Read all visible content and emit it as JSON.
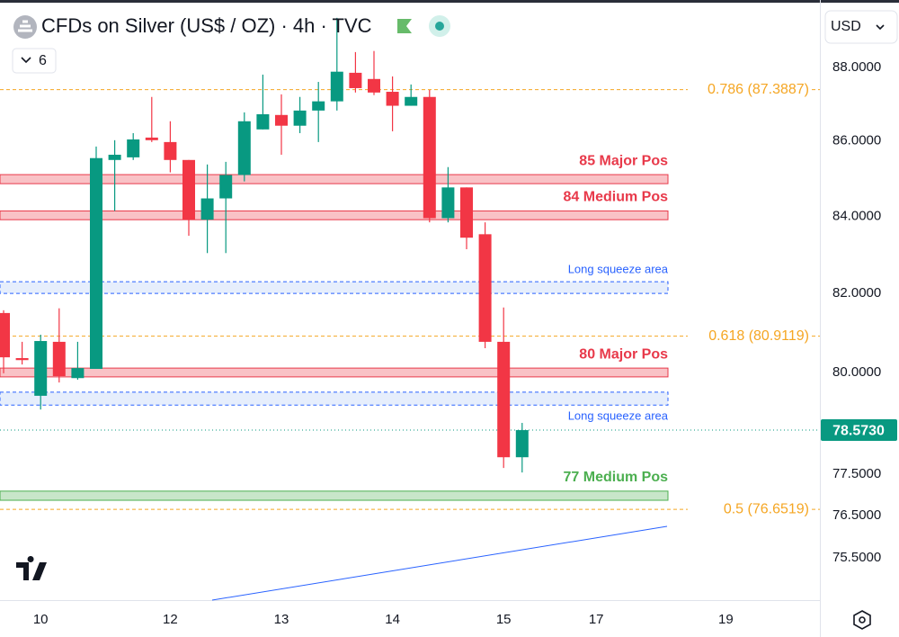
{
  "chart_data": {
    "type": "candlestick",
    "title": "CFDs on Silver (US$ / OZ) · 4h · TVC",
    "indicators": 6,
    "currency": "USD",
    "log_scale": true,
    "grid": false,
    "up_color": "#089981",
    "down_color": "#f23645",
    "categories": [
      null,
      null,
      "10",
      null,
      null,
      null,
      null,
      null,
      null,
      "12",
      null,
      null,
      null,
      null,
      null,
      "13",
      null,
      null,
      null,
      null,
      null,
      "14",
      null,
      null,
      null,
      null,
      null,
      "15",
      null,
      null,
      null,
      null,
      "17",
      null,
      null,
      null,
      null,
      null,
      null,
      "19",
      null,
      null,
      null,
      null
    ],
    "open": [
      81.5,
      80.36,
      79.42,
      80.77,
      79.86,
      80.09,
      85.49,
      85.56,
      86.09,
      85.97,
      85.49,
      83.91,
      84.47,
      85.09,
      86.31,
      86.7,
      86.41,
      86.82,
      87.07,
      87.85,
      87.68,
      87.33,
      86.95,
      87.19,
      83.95,
      84.76,
      83.53,
      80.77,
      77.91,
      null,
      null,
      null,
      null,
      null,
      null,
      null,
      null,
      null,
      null,
      null,
      null,
      null,
      null,
      null
    ],
    "high": [
      81.57,
      80.77,
      80.95,
      81.62,
      80.77,
      85.85,
      86.02,
      86.21,
      87.19,
      86.53,
      85.49,
      85.37,
      85.44,
      86.77,
      87.8,
      87.26,
      87.19,
      87.6,
      89.37,
      88.42,
      88.45,
      87.75,
      87.53,
      87.38,
      85.3,
      84.76,
      83.84,
      81.64,
      78.75,
      null,
      null,
      null,
      null,
      null,
      null,
      null,
      null,
      null,
      null,
      null,
      null,
      null,
      null,
      null
    ],
    "low": [
      79.98,
      80.2,
      79.08,
      79.75,
      79.82,
      80.09,
      84.14,
      85.49,
      85.97,
      85.16,
      83.49,
      83.04,
      83.04,
      84.92,
      86.31,
      85.63,
      86.21,
      85.97,
      86.82,
      87.31,
      87.24,
      86.26,
      86.95,
      83.84,
      83.84,
      83.14,
      80.61,
      77.65,
      77.54,
      null,
      null,
      null,
      null,
      null,
      null,
      null,
      null,
      null,
      null,
      null,
      null,
      null,
      null,
      null
    ],
    "close": [
      80.38,
      80.31,
      80.79,
      79.91,
      80.11,
      85.54,
      85.63,
      86.04,
      86.02,
      85.49,
      83.91,
      84.47,
      85.09,
      86.53,
      86.72,
      86.41,
      86.82,
      87.07,
      87.88,
      87.43,
      87.31,
      86.95,
      87.19,
      83.95,
      84.76,
      83.44,
      80.77,
      77.91,
      78.573,
      null,
      null,
      null,
      null,
      null,
      null,
      null,
      null,
      null,
      null,
      null,
      null,
      null,
      null,
      null
    ],
    "ylim": [
      74.51,
      89.87
    ],
    "yticks": [
      {
        "value": 88,
        "label": "88.0000"
      },
      {
        "value": 86,
        "label": "86.0000"
      },
      {
        "value": 84,
        "label": "84.0000"
      },
      {
        "value": 82,
        "label": "82.0000"
      },
      {
        "value": 80,
        "label": "80.0000"
      },
      {
        "value": 77.5,
        "label": "77.5000"
      },
      {
        "value": 76.5,
        "label": "76.5000"
      },
      {
        "value": 75.5,
        "label": "75.5000"
      }
    ],
    "last_price": {
      "value": 78.573,
      "label": "78.5730"
    },
    "levels": [
      {
        "value": 87.3887,
        "label": "0.786 (87.3887)",
        "color": "#f5a623"
      },
      {
        "value": 80.9119,
        "label": "0.618 (80.9119)",
        "color": "#f5a623"
      },
      {
        "value": 76.6519,
        "label": "0.5 (76.6519)",
        "color": "#f5a623"
      }
    ],
    "zones": [
      {
        "label": "85 Major Pos",
        "range": [
          85.1,
          84.86
        ],
        "color": "#e8394a",
        "fill": "#f9c2c6",
        "border": "solid"
      },
      {
        "label": "84 Medium Pos",
        "range": [
          84.14,
          83.91
        ],
        "color": "#e8394a",
        "fill": "#f9c2c6",
        "border": "solid"
      },
      {
        "label": "Long squeeze area",
        "range": [
          82.3,
          82.0
        ],
        "color": "#2962ff",
        "fill": "#e6eefc",
        "border": "dashed"
      },
      {
        "label": "80 Major Pos",
        "range": [
          80.11,
          79.89
        ],
        "color": "#e8394a",
        "fill": "#f9c2c6",
        "border": "solid"
      },
      {
        "label": "Long squeeze area",
        "range": [
          79.51,
          79.19
        ],
        "color": "#2962ff",
        "fill": "#e6eefc",
        "border": "dashed"
      },
      {
        "label": "77 Medium Pos",
        "range": [
          77.09,
          76.87
        ],
        "color": "#4caf50",
        "fill": "#c8e6c9",
        "border": "solid"
      }
    ]
  }
}
